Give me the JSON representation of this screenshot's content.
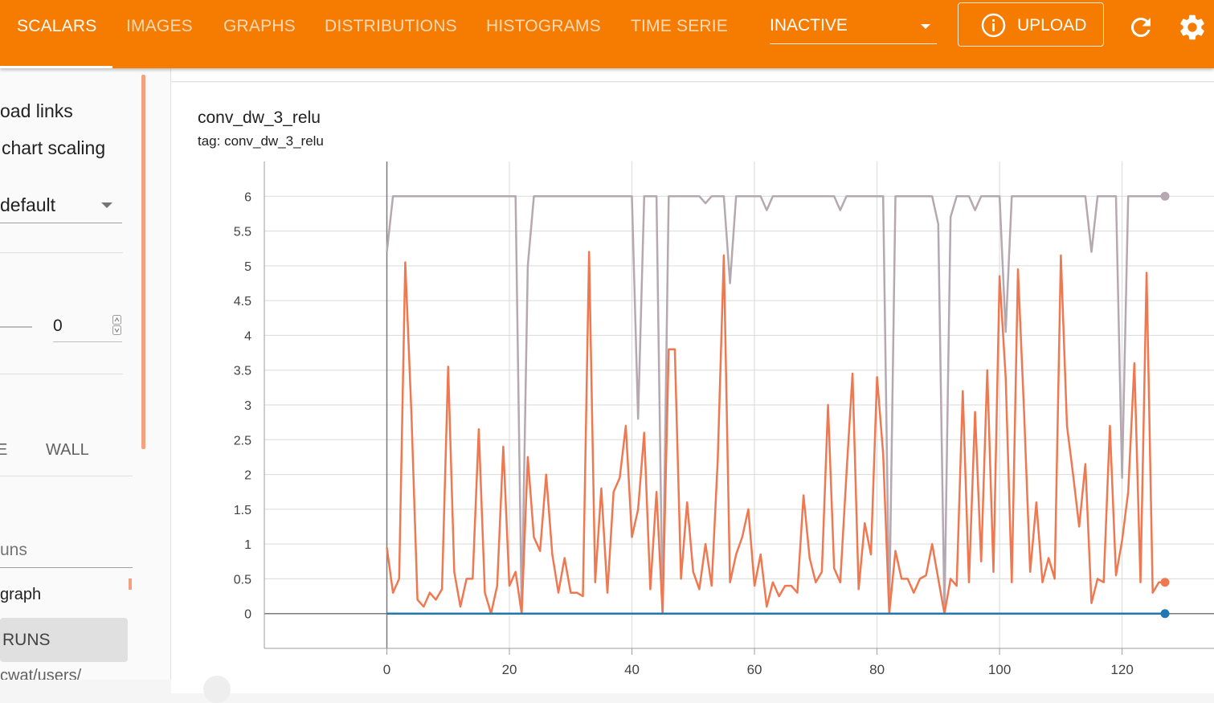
{
  "nav": {
    "tabs": [
      {
        "label": "SCALARS",
        "active": true
      },
      {
        "label": "IMAGES"
      },
      {
        "label": "GRAPHS"
      },
      {
        "label": "DISTRIBUTIONS"
      },
      {
        "label": "HISTOGRAMS"
      },
      {
        "label": "TIME SERIE"
      }
    ],
    "run_select": "INACTIVE",
    "upload_label": "UPLOAD",
    "upload_icon": "info-circle-icon",
    "reload_icon": "refresh-icon",
    "settings_icon": "gear-icon",
    "accent": "#f57c00"
  },
  "sidebar": {
    "download_links": "oad links",
    "chart_scaling": "chart scaling",
    "scaling_value": "default",
    "smoothing_value": "0",
    "time_label_cut": "E",
    "wall_label": "WALL",
    "filter_runs_placeholder": "uns",
    "run_name": "graph",
    "runs_button": "RUNS",
    "path_cut": "cwat/users/"
  },
  "card": {
    "title": "conv_dw_3_relu",
    "subtitle": "tag: conv_dw_3_relu"
  },
  "chart_data": {
    "type": "line",
    "x_ticks": [
      0,
      20,
      40,
      60,
      80,
      100,
      120
    ],
    "y_ticks": [
      "6",
      "5.5",
      "5",
      "4.5",
      "4",
      "3.5",
      "3",
      "2.5",
      "2",
      "1.5",
      "1",
      "0.5",
      "0"
    ],
    "xlim": [
      -20,
      135
    ],
    "ylim": [
      -0.5,
      6.5
    ],
    "grid": true,
    "series": [
      {
        "color": "#b6a8b0",
        "points": [
          [
            0,
            5.2
          ],
          [
            1,
            6
          ],
          [
            2,
            6
          ],
          [
            20,
            6
          ],
          [
            21,
            6
          ],
          [
            22,
            0
          ],
          [
            23,
            5
          ],
          [
            24,
            6
          ],
          [
            40,
            6
          ],
          [
            41,
            2.8
          ],
          [
            42,
            6
          ],
          [
            44,
            6
          ],
          [
            45,
            0
          ],
          [
            46,
            6
          ],
          [
            51,
            6
          ],
          [
            52,
            5.9
          ],
          [
            53,
            6
          ],
          [
            55,
            6
          ],
          [
            56,
            4.75
          ],
          [
            57,
            6
          ],
          [
            61,
            6
          ],
          [
            62,
            5.8
          ],
          [
            63,
            6
          ],
          [
            73,
            6
          ],
          [
            74,
            5.8
          ],
          [
            75,
            6
          ],
          [
            81,
            6
          ],
          [
            82,
            0
          ],
          [
            83,
            6
          ],
          [
            89,
            6
          ],
          [
            90,
            5.6
          ],
          [
            91,
            0
          ],
          [
            92,
            5.7
          ],
          [
            93,
            6
          ],
          [
            95,
            6
          ],
          [
            96,
            5.8
          ],
          [
            97,
            6
          ],
          [
            100,
            6
          ],
          [
            101,
            4.05
          ],
          [
            102,
            6
          ],
          [
            114,
            6
          ],
          [
            115,
            5.2
          ],
          [
            116,
            6
          ],
          [
            119,
            6
          ],
          [
            120,
            1.95
          ],
          [
            121,
            6
          ],
          [
            127,
            6
          ]
        ]
      },
      {
        "color": "#ef7850",
        "points": [
          [
            0,
            0.95
          ],
          [
            1,
            0.3
          ],
          [
            2,
            0.5
          ],
          [
            3,
            5.05
          ],
          [
            4,
            2.9
          ],
          [
            5,
            0.2
          ],
          [
            6,
            0.1
          ],
          [
            7,
            0.3
          ],
          [
            8,
            0.2
          ],
          [
            9,
            0.35
          ],
          [
            10,
            3.55
          ],
          [
            11,
            0.6
          ],
          [
            12,
            0.1
          ],
          [
            13,
            0.5
          ],
          [
            14,
            0.5
          ],
          [
            15,
            2.65
          ],
          [
            16,
            0.3
          ],
          [
            17,
            0.0
          ],
          [
            18,
            0.4
          ],
          [
            19,
            2.4
          ],
          [
            20,
            0.4
          ],
          [
            21,
            0.6
          ],
          [
            22,
            0.0
          ],
          [
            23,
            2.25
          ],
          [
            24,
            1.1
          ],
          [
            25,
            0.9
          ],
          [
            26,
            2.0
          ],
          [
            27,
            0.85
          ],
          [
            28,
            0.3
          ],
          [
            29,
            0.8
          ],
          [
            30,
            0.3
          ],
          [
            31,
            0.3
          ],
          [
            32,
            0.25
          ],
          [
            33,
            5.2
          ],
          [
            34,
            0.45
          ],
          [
            35,
            1.8
          ],
          [
            36,
            0.3
          ],
          [
            37,
            1.75
          ],
          [
            38,
            1.95
          ],
          [
            39,
            2.7
          ],
          [
            40,
            1.1
          ],
          [
            41,
            1.5
          ],
          [
            42,
            2.6
          ],
          [
            43,
            0.35
          ],
          [
            44,
            1.75
          ],
          [
            45,
            0.0
          ],
          [
            46,
            3.8
          ],
          [
            47,
            3.8
          ],
          [
            48,
            0.5
          ],
          [
            49,
            1.6
          ],
          [
            50,
            0.6
          ],
          [
            51,
            0.35
          ],
          [
            52,
            1.0
          ],
          [
            53,
            0.4
          ],
          [
            54,
            2.2
          ],
          [
            55,
            5.15
          ],
          [
            56,
            0.45
          ],
          [
            57,
            0.85
          ],
          [
            58,
            1.1
          ],
          [
            59,
            1.5
          ],
          [
            60,
            0.4
          ],
          [
            61,
            0.85
          ],
          [
            62,
            0.1
          ],
          [
            63,
            0.45
          ],
          [
            64,
            0.25
          ],
          [
            65,
            0.4
          ],
          [
            66,
            0.4
          ],
          [
            67,
            0.3
          ],
          [
            68,
            1.7
          ],
          [
            69,
            0.8
          ],
          [
            70,
            0.45
          ],
          [
            71,
            0.6
          ],
          [
            72,
            3.0
          ],
          [
            73,
            0.65
          ],
          [
            74,
            0.45
          ],
          [
            75,
            2.0
          ],
          [
            76,
            3.45
          ],
          [
            77,
            0.35
          ],
          [
            78,
            1.3
          ],
          [
            79,
            0.85
          ],
          [
            80,
            3.4
          ],
          [
            81,
            2.3
          ],
          [
            82,
            0.0
          ],
          [
            83,
            0.9
          ],
          [
            84,
            0.5
          ],
          [
            85,
            0.5
          ],
          [
            86,
            0.3
          ],
          [
            87,
            0.5
          ],
          [
            88,
            0.55
          ],
          [
            89,
            1.0
          ],
          [
            90,
            0.5
          ],
          [
            91,
            0.0
          ],
          [
            92,
            0.5
          ],
          [
            93,
            0.4
          ],
          [
            94,
            3.2
          ],
          [
            95,
            0.45
          ],
          [
            96,
            2.9
          ],
          [
            97,
            0.75
          ],
          [
            98,
            3.5
          ],
          [
            99,
            0.6
          ],
          [
            100,
            4.85
          ],
          [
            101,
            3.4
          ],
          [
            102,
            0.45
          ],
          [
            103,
            4.95
          ],
          [
            104,
            2.9
          ],
          [
            105,
            0.6
          ],
          [
            106,
            1.6
          ],
          [
            107,
            0.45
          ],
          [
            108,
            0.8
          ],
          [
            109,
            0.5
          ],
          [
            110,
            5.15
          ],
          [
            111,
            2.7
          ],
          [
            112,
            2.0
          ],
          [
            113,
            1.25
          ],
          [
            114,
            2.15
          ],
          [
            115,
            0.15
          ],
          [
            116,
            0.5
          ],
          [
            117,
            0.45
          ],
          [
            118,
            2.7
          ],
          [
            119,
            0.55
          ],
          [
            120,
            1.05
          ],
          [
            121,
            1.75
          ],
          [
            122,
            3.6
          ],
          [
            123,
            0.45
          ],
          [
            124,
            4.9
          ],
          [
            125,
            0.3
          ],
          [
            126,
            0.45
          ],
          [
            127,
            0.45
          ]
        ]
      },
      {
        "color": "#1f77b4",
        "points": [
          [
            0,
            0
          ],
          [
            127,
            0
          ]
        ]
      }
    ]
  }
}
